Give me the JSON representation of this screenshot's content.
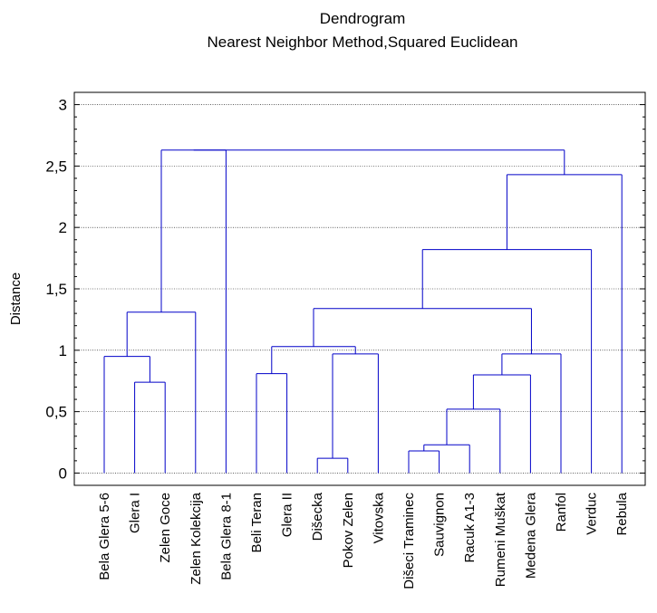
{
  "chart_data": {
    "type": "dendrogram",
    "title": "Dendrogram",
    "subtitle": "Nearest Neighbor Method,Squared Euclidean",
    "ylabel": "Distance",
    "ylim": [
      -0.1,
      3.1
    ],
    "yticks": [
      0,
      0.5,
      1,
      1.5,
      2,
      2.5,
      3
    ],
    "ytick_labels": [
      "0",
      "0,5",
      "1",
      "1,5",
      "2",
      "2,5",
      "3"
    ],
    "grid": true,
    "colors": {
      "tree": "#0000c8",
      "grid": "#000000",
      "axis": "#000000"
    },
    "leaves": [
      "Bela Glera 5-6",
      "Glera I",
      "Zelen Goce",
      "Zelen Kolekcija",
      "Bela Glera 8-1",
      "Beli Teran",
      "Glera II",
      "Dišecka",
      "Pokov Zelen",
      "Vitovska",
      "Dišeci Traminec",
      "Sauvignon",
      "Racuk A1-3",
      "Rumeni Muškat",
      "Medena Glera",
      "Ranfol",
      "Verduc",
      "Rebula"
    ],
    "merges": [
      {
        "left": [
          1
        ],
        "right": [
          2
        ],
        "height": 0.74
      },
      {
        "left": [
          0
        ],
        "right": [
          1,
          2
        ],
        "height": 0.95
      },
      {
        "left": [
          0,
          1,
          2
        ],
        "right": [
          3
        ],
        "height": 1.31
      },
      {
        "left": [
          7
        ],
        "right": [
          8
        ],
        "height": 0.12
      },
      {
        "left": [
          7,
          8
        ],
        "right": [
          9
        ],
        "height": 0.97
      },
      {
        "left": [
          5
        ],
        "right": [
          6
        ],
        "height": 0.81
      },
      {
        "left": [
          5,
          6
        ],
        "right": [
          7,
          8,
          9
        ],
        "height": 1.03
      },
      {
        "left": [
          10
        ],
        "right": [
          11
        ],
        "height": 0.18
      },
      {
        "left": [
          10,
          11
        ],
        "right": [
          12
        ],
        "height": 0.23
      },
      {
        "left": [
          10,
          11,
          12
        ],
        "right": [
          13
        ],
        "height": 0.52
      },
      {
        "left": [
          10,
          11,
          12,
          13
        ],
        "right": [
          14
        ],
        "height": 0.8
      },
      {
        "left": [
          10,
          11,
          12,
          13,
          14
        ],
        "right": [
          15
        ],
        "height": 0.97
      },
      {
        "left": [
          5,
          6,
          7,
          8,
          9
        ],
        "right": [
          10,
          11,
          12,
          13,
          14,
          15
        ],
        "height": 1.34
      },
      {
        "left": [
          5,
          6,
          7,
          8,
          9,
          10,
          11,
          12,
          13,
          14,
          15
        ],
        "right": [
          16
        ],
        "height": 1.82
      },
      {
        "left": [
          5,
          6,
          7,
          8,
          9,
          10,
          11,
          12,
          13,
          14,
          15,
          16
        ],
        "right": [
          17
        ],
        "height": 2.43
      },
      {
        "left": [
          0,
          1,
          2,
          3
        ],
        "right": [
          4
        ],
        "height": 2.63
      },
      {
        "left": [
          0,
          1,
          2,
          3,
          4
        ],
        "right": [
          5,
          6,
          7,
          8,
          9,
          10,
          11,
          12,
          13,
          14,
          15,
          16,
          17
        ],
        "height": 2.63
      }
    ]
  }
}
